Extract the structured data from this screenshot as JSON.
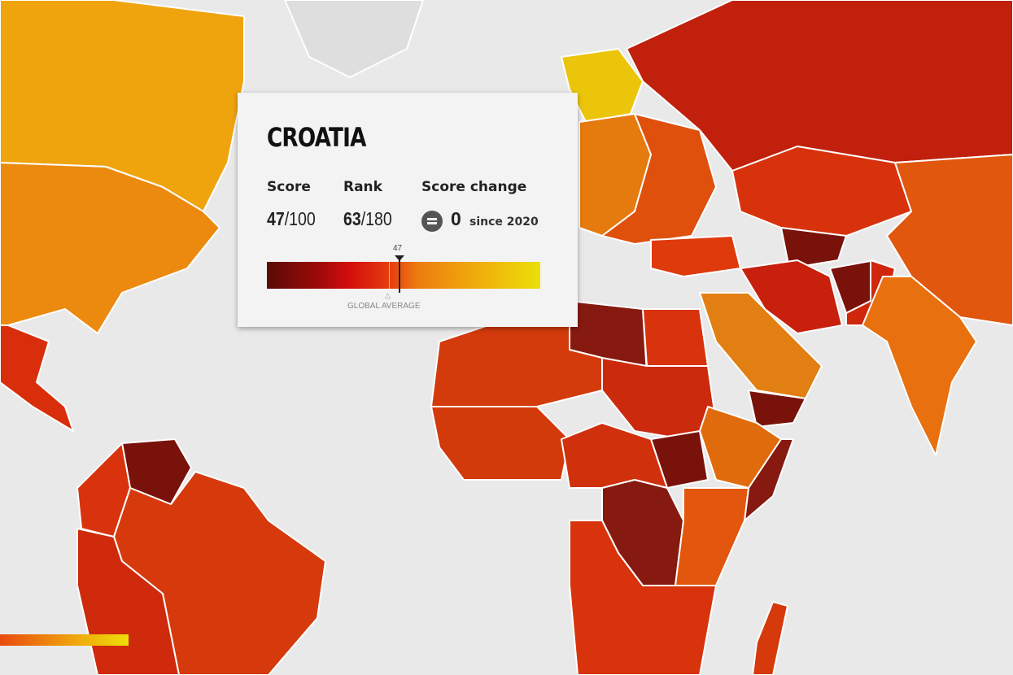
{
  "tooltip": {
    "country": "CROATIA",
    "score_label": "Score",
    "score_value": "47",
    "score_max": "/100",
    "rank_label": "Rank",
    "rank_value": "63",
    "rank_max": "/180",
    "change_label": "Score change",
    "change_icon": "equal-icon",
    "change_value": "0",
    "change_since": "since 2020",
    "scale_marker": "47",
    "global_average_label": "GLOBAL AVERAGE",
    "scale_range": [
      0,
      100
    ],
    "scale_colors": [
      "#5a0a06",
      "#d40d0d",
      "#ec7b10",
      "#ecdf08"
    ]
  },
  "map_colors": {
    "ocean": "#e9e9e9",
    "border": "#ffffff",
    "very_low": "#8a1a10",
    "low": "#c8200c",
    "mid_low": "#de3a0c",
    "mid": "#e9690f",
    "mid_high": "#f0a010",
    "high": "#ecc50a"
  }
}
